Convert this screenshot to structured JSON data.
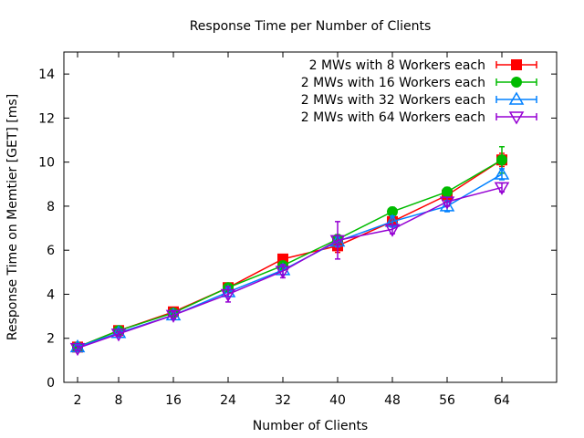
{
  "chart_data": {
    "type": "line",
    "title": "Response Time per Number of Clients",
    "xlabel": "Number of Clients",
    "ylabel": "Response Time on Memtier [GET] [ms]",
    "x": [
      2,
      8,
      16,
      24,
      32,
      40,
      48,
      56,
      64
    ],
    "xlim": [
      0,
      72
    ],
    "ylim": [
      0,
      15
    ],
    "x_ticks": [
      "2",
      "8",
      "16",
      "24",
      "32",
      "40",
      "48",
      "56",
      "64"
    ],
    "y_ticks": [
      0,
      2,
      4,
      6,
      8,
      10,
      12,
      14
    ],
    "grid": false,
    "legend_position": "top-right",
    "series": [
      {
        "name": "2 MWs with 8 Workers each",
        "color": "#ff0000",
        "marker": "square",
        "values": [
          1.6,
          2.35,
          3.2,
          4.3,
          5.6,
          6.2,
          7.3,
          8.5,
          10.1
        ],
        "errors": [
          0.1,
          0.15,
          0.15,
          0.2,
          0.2,
          0.3,
          0.2,
          0.3,
          0.3
        ]
      },
      {
        "name": "2 MWs with 16 Workers each",
        "color": "#00bb00",
        "marker": "circle",
        "values": [
          1.6,
          2.35,
          3.15,
          4.3,
          5.3,
          6.5,
          7.75,
          8.65,
          10.1
        ],
        "errors": [
          0.1,
          0.1,
          0.15,
          0.15,
          0.2,
          0.2,
          0.2,
          0.2,
          0.6
        ]
      },
      {
        "name": "2 MWs with 32 Workers each",
        "color": "#0080ff",
        "marker": "triangle-up",
        "values": [
          1.6,
          2.25,
          3.05,
          4.1,
          5.1,
          6.4,
          7.3,
          8.0,
          9.45
        ],
        "errors": [
          0.1,
          0.15,
          0.15,
          0.2,
          0.2,
          0.25,
          0.25,
          0.25,
          0.25
        ]
      },
      {
        "name": "2 MWs with 64 Workers each",
        "color": "#9500d3",
        "marker": "triangle-down",
        "values": [
          1.55,
          2.2,
          3.05,
          4.0,
          5.05,
          6.45,
          6.95,
          8.2,
          8.85
        ],
        "errors": [
          0.1,
          0.1,
          0.15,
          0.35,
          0.3,
          0.85,
          0.2,
          0.2,
          0.2
        ]
      }
    ]
  }
}
